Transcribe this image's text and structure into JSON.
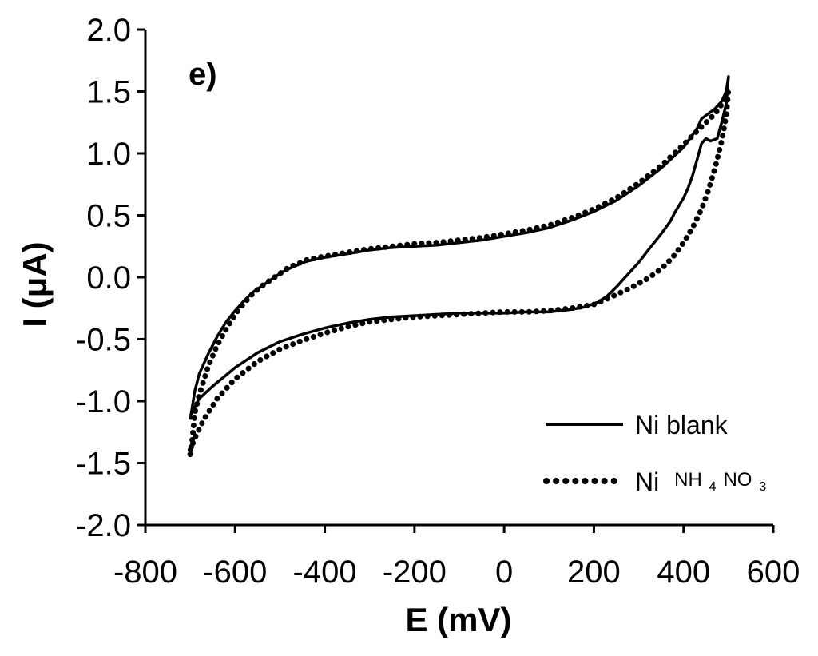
{
  "chart_data": {
    "type": "line",
    "panel_label": "e)",
    "xlabel": "E (mV)",
    "ylabel": "I (μA)",
    "xlim": [
      -800,
      600
    ],
    "ylim": [
      -2.0,
      2.0
    ],
    "x_ticks": [
      -800,
      -600,
      -400,
      -200,
      0,
      200,
      400,
      600
    ],
    "x_tick_labels": [
      "-800",
      "-600",
      "-400",
      "-200",
      "0",
      "200",
      "400",
      "600"
    ],
    "y_ticks": [
      2.0,
      1.5,
      1.0,
      0.5,
      0.0,
      -0.5,
      -1.0,
      -1.5,
      -2.0
    ],
    "y_tick_labels": [
      "2.0",
      "1.5",
      "1.0",
      "0.5",
      "0.0",
      "-0.5",
      "-1.0",
      "-1.5",
      "-2.0"
    ],
    "legend_position": "bottom-right",
    "series": [
      {
        "name": "Ni blank",
        "legend_main": "Ni blank",
        "style": "solid",
        "color": "#000000",
        "points": [
          [
            -700,
            -1.15
          ],
          [
            -690,
            -0.92
          ],
          [
            -680,
            -0.78
          ],
          [
            -660,
            -0.62
          ],
          [
            -640,
            -0.48
          ],
          [
            -620,
            -0.36
          ],
          [
            -600,
            -0.27
          ],
          [
            -580,
            -0.19
          ],
          [
            -560,
            -0.12
          ],
          [
            -540,
            -0.07
          ],
          [
            -520,
            -0.02
          ],
          [
            -500,
            0.03
          ],
          [
            -480,
            0.07
          ],
          [
            -460,
            0.1
          ],
          [
            -440,
            0.13
          ],
          [
            -400,
            0.16
          ],
          [
            -350,
            0.19
          ],
          [
            -300,
            0.22
          ],
          [
            -250,
            0.24
          ],
          [
            -200,
            0.25
          ],
          [
            -150,
            0.26
          ],
          [
            -100,
            0.28
          ],
          [
            -50,
            0.3
          ],
          [
            0,
            0.33
          ],
          [
            50,
            0.36
          ],
          [
            100,
            0.4
          ],
          [
            150,
            0.46
          ],
          [
            200,
            0.53
          ],
          [
            250,
            0.62
          ],
          [
            300,
            0.74
          ],
          [
            350,
            0.88
          ],
          [
            400,
            1.05
          ],
          [
            430,
            1.2
          ],
          [
            440,
            1.28
          ],
          [
            455,
            1.32
          ],
          [
            470,
            1.36
          ],
          [
            485,
            1.42
          ],
          [
            495,
            1.5
          ],
          [
            500,
            1.62
          ],
          [
            495,
            1.4
          ],
          [
            485,
            1.25
          ],
          [
            475,
            1.12
          ],
          [
            460,
            1.1
          ],
          [
            450,
            1.12
          ],
          [
            440,
            1.08
          ],
          [
            430,
            0.95
          ],
          [
            420,
            0.82
          ],
          [
            410,
            0.72
          ],
          [
            400,
            0.64
          ],
          [
            390,
            0.58
          ],
          [
            380,
            0.52
          ],
          [
            370,
            0.45
          ],
          [
            360,
            0.4
          ],
          [
            350,
            0.35
          ],
          [
            330,
            0.26
          ],
          [
            300,
            0.12
          ],
          [
            270,
            0.0
          ],
          [
            250,
            -0.08
          ],
          [
            230,
            -0.15
          ],
          [
            210,
            -0.2
          ],
          [
            180,
            -0.24
          ],
          [
            150,
            -0.26
          ],
          [
            100,
            -0.28
          ],
          [
            50,
            -0.28
          ],
          [
            0,
            -0.29
          ],
          [
            -50,
            -0.29
          ],
          [
            -100,
            -0.29
          ],
          [
            -150,
            -0.3
          ],
          [
            -200,
            -0.31
          ],
          [
            -250,
            -0.32
          ],
          [
            -300,
            -0.34
          ],
          [
            -350,
            -0.37
          ],
          [
            -400,
            -0.41
          ],
          [
            -450,
            -0.46
          ],
          [
            -500,
            -0.52
          ],
          [
            -550,
            -0.61
          ],
          [
            -600,
            -0.73
          ],
          [
            -650,
            -0.88
          ],
          [
            -680,
            -0.98
          ],
          [
            -700,
            -1.12
          ]
        ]
      },
      {
        "name": "Ni NH4NO3",
        "legend_main": "Ni",
        "legend_sub": [
          "NH",
          "4",
          "NO",
          "3"
        ],
        "style": "dotted",
        "color": "#000000",
        "points": [
          [
            -700,
            -1.43
          ],
          [
            -695,
            -1.3
          ],
          [
            -690,
            -1.1
          ],
          [
            -680,
            -0.95
          ],
          [
            -660,
            -0.72
          ],
          [
            -640,
            -0.55
          ],
          [
            -620,
            -0.42
          ],
          [
            -600,
            -0.3
          ],
          [
            -580,
            -0.21
          ],
          [
            -560,
            -0.13
          ],
          [
            -540,
            -0.07
          ],
          [
            -520,
            -0.02
          ],
          [
            -500,
            0.03
          ],
          [
            -480,
            0.08
          ],
          [
            -460,
            0.11
          ],
          [
            -440,
            0.14
          ],
          [
            -400,
            0.17
          ],
          [
            -350,
            0.2
          ],
          [
            -300,
            0.23
          ],
          [
            -250,
            0.25
          ],
          [
            -200,
            0.27
          ],
          [
            -150,
            0.28
          ],
          [
            -100,
            0.3
          ],
          [
            -50,
            0.32
          ],
          [
            0,
            0.35
          ],
          [
            50,
            0.38
          ],
          [
            100,
            0.42
          ],
          [
            150,
            0.48
          ],
          [
            200,
            0.55
          ],
          [
            250,
            0.64
          ],
          [
            300,
            0.76
          ],
          [
            350,
            0.9
          ],
          [
            400,
            1.07
          ],
          [
            430,
            1.18
          ],
          [
            450,
            1.25
          ],
          [
            470,
            1.32
          ],
          [
            490,
            1.42
          ],
          [
            500,
            1.52
          ],
          [
            495,
            1.3
          ],
          [
            485,
            1.1
          ],
          [
            470,
            0.88
          ],
          [
            455,
            0.7
          ],
          [
            440,
            0.55
          ],
          [
            420,
            0.4
          ],
          [
            400,
            0.28
          ],
          [
            380,
            0.18
          ],
          [
            360,
            0.1
          ],
          [
            340,
            0.04
          ],
          [
            320,
            -0.01
          ],
          [
            300,
            -0.05
          ],
          [
            280,
            -0.09
          ],
          [
            250,
            -0.14
          ],
          [
            220,
            -0.19
          ],
          [
            200,
            -0.22
          ],
          [
            150,
            -0.25
          ],
          [
            100,
            -0.27
          ],
          [
            50,
            -0.28
          ],
          [
            0,
            -0.28
          ],
          [
            -50,
            -0.29
          ],
          [
            -100,
            -0.3
          ],
          [
            -150,
            -0.31
          ],
          [
            -200,
            -0.32
          ],
          [
            -250,
            -0.34
          ],
          [
            -300,
            -0.36
          ],
          [
            -350,
            -0.4
          ],
          [
            -400,
            -0.45
          ],
          [
            -450,
            -0.51
          ],
          [
            -500,
            -0.58
          ],
          [
            -550,
            -0.68
          ],
          [
            -600,
            -0.82
          ],
          [
            -640,
            -0.98
          ],
          [
            -670,
            -1.15
          ],
          [
            -690,
            -1.3
          ],
          [
            -700,
            -1.4
          ]
        ]
      }
    ]
  }
}
